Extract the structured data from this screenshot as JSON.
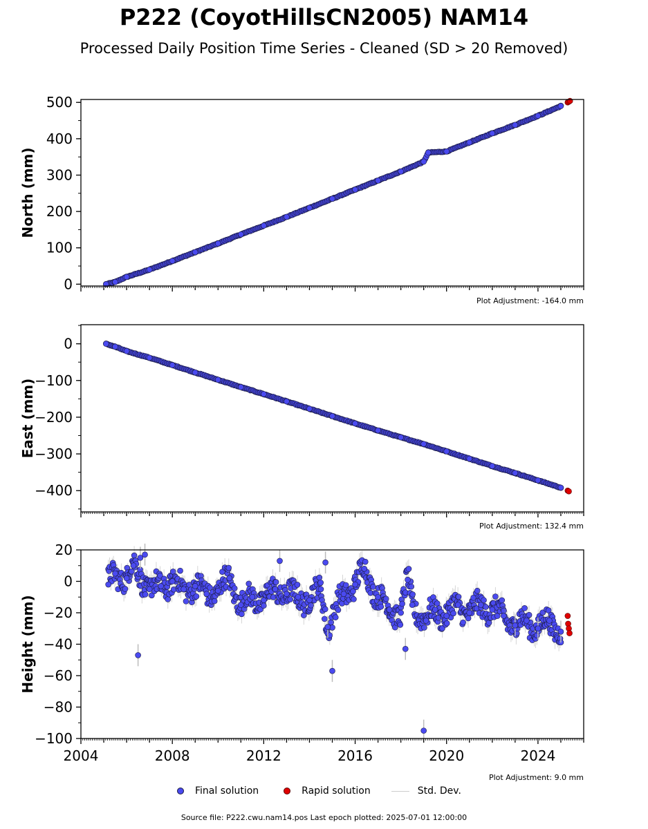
{
  "header": {
    "title": "P222 (CoyotHillsCN2005) NAM14",
    "subtitle": "Processed Daily Position Time Series - Cleaned (SD > 20 Removed)"
  },
  "colors": {
    "final": "#4a4af0",
    "final_edge": "#1a1a40",
    "rapid": "#e00000",
    "stddev": "#bbbbbb"
  },
  "legend": {
    "final": "Final solution",
    "rapid": "Rapid solution",
    "stddev": "Std. Dev."
  },
  "footer": "Source file: P222.cwu.nam14.pos  Last epoch plotted: 2025-07-01 12:00:00",
  "chart_data": [
    {
      "type": "scatter",
      "ylabel": "North (mm)",
      "adjustment": "Plot Adjustment: -164.0 mm",
      "xlim": [
        2004.0,
        2026.0
      ],
      "ylim": [
        -5,
        508
      ],
      "yticks": [
        0,
        100,
        200,
        300,
        400,
        500
      ],
      "ytick_labels": [
        "0",
        "100",
        "200",
        "300",
        "400",
        "500"
      ],
      "x_tick_labels_shown": false,
      "series": [
        {
          "name": "Final solution",
          "x": [
            2005.1,
            2005.5,
            2006.0,
            2007.0,
            2008.0,
            2009.0,
            2010.0,
            2011.0,
            2012.0,
            2013.0,
            2014.0,
            2015.0,
            2016.0,
            2017.0,
            2018.0,
            2019.0,
            2019.2,
            2020.0,
            2021.0,
            2022.0,
            2023.0,
            2024.0,
            2025.0
          ],
          "y": [
            0,
            6,
            20,
            40,
            64,
            88,
            112,
            137,
            161,
            185,
            210,
            235,
            260,
            285,
            310,
            337,
            362,
            365,
            390,
            415,
            438,
            463,
            490
          ]
        },
        {
          "name": "Rapid solution",
          "x": [
            2025.3,
            2025.35,
            2025.4
          ],
          "y": [
            500,
            502,
            504
          ]
        }
      ]
    },
    {
      "type": "scatter",
      "ylabel": "East (mm)",
      "adjustment": "Plot Adjustment: 132.4 mm",
      "xlim": [
        2004.0,
        2026.0
      ],
      "ylim": [
        -458,
        52
      ],
      "yticks": [
        0,
        -100,
        -200,
        -300,
        -400
      ],
      "ytick_labels": [
        "0",
        "−100",
        "−200",
        "−300",
        "−400"
      ],
      "x_tick_labels_shown": false,
      "series": [
        {
          "name": "Final solution",
          "x": [
            2005.1,
            2005.5,
            2006.0,
            2007.0,
            2008.0,
            2009.0,
            2010.0,
            2011.0,
            2012.0,
            2013.0,
            2014.0,
            2015.0,
            2016.0,
            2017.0,
            2018.0,
            2019.0,
            2020.0,
            2021.0,
            2022.0,
            2023.0,
            2024.0,
            2025.0
          ],
          "y": [
            0,
            -8,
            -20,
            -38,
            -58,
            -78,
            -98,
            -118,
            -137,
            -157,
            -177,
            -197,
            -217,
            -236,
            -255,
            -273,
            -293,
            -313,
            -333,
            -352,
            -372,
            -392
          ]
        },
        {
          "name": "Rapid solution",
          "x": [
            2025.3,
            2025.35
          ],
          "y": [
            -400,
            -402
          ]
        }
      ]
    },
    {
      "type": "scatter",
      "ylabel": "Height (mm)",
      "adjustment": "Plot Adjustment: 9.0 mm",
      "xlim": [
        2004.0,
        2026.0
      ],
      "ylim": [
        -100,
        20
      ],
      "yticks": [
        20,
        0,
        -20,
        -40,
        -60,
        -80,
        -100
      ],
      "ytick_labels": [
        "20",
        "0",
        "−20",
        "−40",
        "−60",
        "−80",
        "−100"
      ],
      "x_tick_labels_shown": true,
      "xticks": [
        2004,
        2008,
        2012,
        2016,
        2020,
        2024
      ],
      "xtick_labels": [
        "2004",
        "2008",
        "2012",
        "2016",
        "2020",
        "2024"
      ],
      "series": [
        {
          "name": "Final solution",
          "x": [
            2005.2,
            2005.5,
            2006.0,
            2006.3,
            2006.5,
            2006.6,
            2006.8,
            2007.0,
            2007.5,
            2008.0,
            2008.5,
            2009.0,
            2009.5,
            2010.0,
            2010.5,
            2011.0,
            2011.5,
            2012.0,
            2012.5,
            2012.7,
            2013.0,
            2013.5,
            2014.0,
            2014.5,
            2014.7,
            2014.8,
            2015.0,
            2015.5,
            2016.0,
            2016.4,
            2017.0,
            2017.5,
            2018.0,
            2018.2,
            2018.3,
            2018.5,
            2019.0,
            2019.1,
            2019.5,
            2020.0,
            2020.5,
            2021.0,
            2021.5,
            2022.0,
            2022.5,
            2023.0,
            2023.5,
            2024.0,
            2024.5,
            2025.0
          ],
          "y": [
            -2,
            5,
            2,
            10,
            -47,
            15,
            17,
            -5,
            -3,
            0,
            -5,
            -3,
            -8,
            -6,
            2,
            -15,
            -10,
            -12,
            -5,
            13,
            -8,
            -10,
            -12,
            -5,
            12,
            -29,
            -57,
            -8,
            -2,
            8,
            -10,
            -18,
            -20,
            -43,
            1,
            -15,
            -95,
            -25,
            -18,
            -22,
            -15,
            -20,
            -15,
            -18,
            -22,
            -28,
            -25,
            -30,
            -25,
            -32
          ]
        },
        {
          "name": "Rapid solution",
          "x": [
            2025.3,
            2025.32,
            2025.35,
            2025.38
          ],
          "y": [
            -22,
            -27,
            -30,
            -33
          ]
        }
      ]
    }
  ]
}
